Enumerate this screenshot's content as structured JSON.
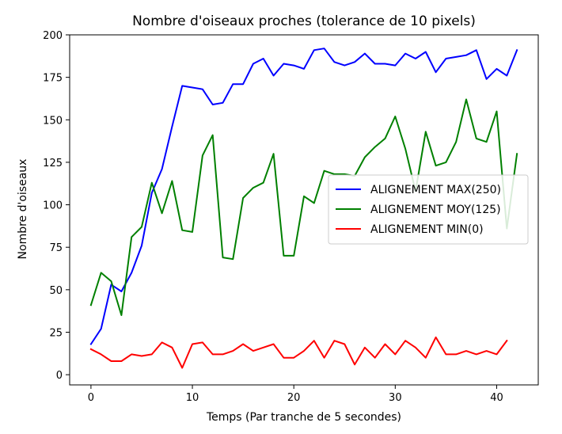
{
  "chart_data": {
    "type": "line",
    "title": "Nombre d'oiseaux proches (tolerance de 10 pixels)",
    "xlabel": "Temps (Par tranche de 5 secondes)",
    "ylabel": "Nombre d'oiseaux",
    "xlim": [
      -2.1,
      44.1
    ],
    "ylim": [
      -6,
      200
    ],
    "xticks": [
      0,
      10,
      20,
      30,
      40
    ],
    "yticks": [
      0,
      25,
      50,
      75,
      100,
      125,
      150,
      175,
      200
    ],
    "grid": false,
    "legend_position": "center-right",
    "series": [
      {
        "name": "ALIGNEMENT MAX(250)",
        "color": "#0000ff",
        "x": [
          0,
          1,
          2,
          3,
          4,
          5,
          6,
          7,
          8,
          9,
          10,
          11,
          12,
          13,
          14,
          15,
          16,
          17,
          18,
          19,
          20,
          21,
          22,
          23,
          24,
          25,
          26,
          27,
          28,
          29,
          30,
          31,
          32,
          33,
          34,
          35,
          36,
          37,
          38,
          39,
          40,
          41,
          42
        ],
        "values": [
          18,
          27,
          53,
          49,
          60,
          76,
          107,
          121,
          146,
          170,
          169,
          168,
          159,
          160,
          171,
          171,
          183,
          186,
          176,
          183,
          182,
          180,
          191,
          192,
          184,
          182,
          184,
          189,
          183,
          183,
          182,
          189,
          186,
          190,
          178,
          186,
          187,
          188,
          191,
          174,
          180,
          176,
          191
        ]
      },
      {
        "name": "ALIGNEMENT MOY(125)",
        "color": "#008000",
        "x": [
          0,
          1,
          2,
          3,
          4,
          5,
          6,
          7,
          8,
          9,
          10,
          11,
          12,
          13,
          14,
          15,
          16,
          17,
          18,
          19,
          20,
          21,
          22,
          23,
          24,
          25,
          26,
          27,
          28,
          29,
          30,
          31,
          32,
          33,
          34,
          35,
          36,
          37,
          38,
          39,
          40,
          41,
          42
        ],
        "values": [
          41,
          60,
          55,
          35,
          81,
          87,
          113,
          95,
          114,
          85,
          84,
          129,
          141,
          69,
          68,
          104,
          110,
          113,
          130,
          70,
          70,
          105,
          101,
          120,
          118,
          118,
          117,
          128,
          134,
          139,
          152,
          133,
          108,
          143,
          123,
          125,
          137,
          162,
          139,
          137,
          155,
          86,
          130
        ]
      },
      {
        "name": "ALIGNEMENT MIN(0)",
        "color": "#ff0000",
        "x": [
          0,
          1,
          2,
          3,
          4,
          5,
          6,
          7,
          8,
          9,
          10,
          11,
          12,
          13,
          14,
          15,
          16,
          17,
          18,
          19,
          20,
          21,
          22,
          23,
          24,
          25,
          26,
          27,
          28,
          29,
          30,
          31,
          32,
          33,
          34,
          35,
          36,
          37,
          38,
          39,
          40,
          41
        ],
        "values": [
          15,
          12,
          8,
          8,
          12,
          11,
          12,
          19,
          16,
          4,
          18,
          19,
          12,
          12,
          14,
          18,
          14,
          16,
          18,
          10,
          10,
          14,
          20,
          10,
          20,
          18,
          6,
          16,
          10,
          18,
          12,
          20,
          16,
          10,
          22,
          12,
          12,
          14,
          12,
          14,
          12,
          20
        ]
      }
    ]
  }
}
